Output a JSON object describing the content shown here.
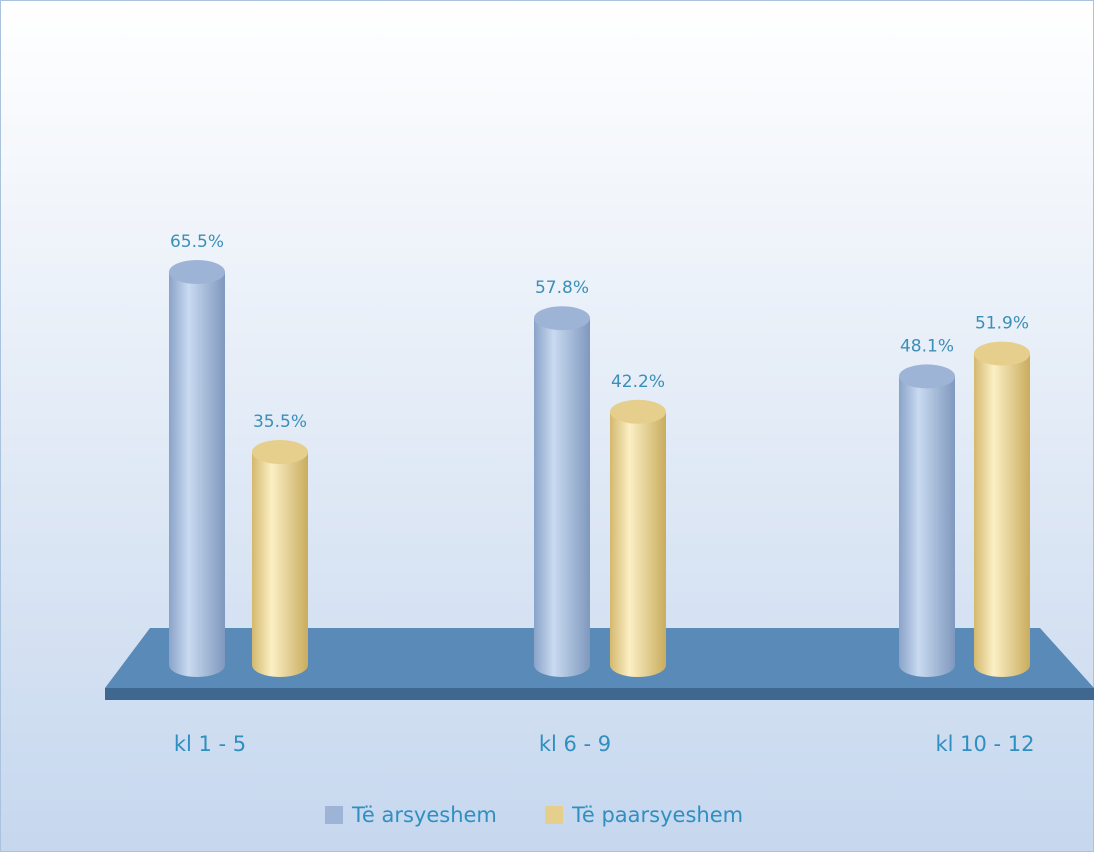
{
  "chart_data": {
    "type": "bar",
    "categories": [
      "kl 1 - 5",
      "kl 6 - 9",
      "kl 10 - 12"
    ],
    "series": [
      {
        "name": "Të arsyeshem",
        "color": "#9db4d6",
        "values": [
          65.5,
          57.8,
          48.1
        ],
        "value_labels": [
          "65.5%",
          "57.8%",
          "48.1%"
        ]
      },
      {
        "name": "Të paarsyeshem",
        "color": "#e6cf8c",
        "values": [
          35.5,
          42.2,
          51.9
        ],
        "value_labels": [
          "35.5%",
          "42.2%",
          "51.9%"
        ]
      }
    ],
    "legend": "bottom"
  }
}
